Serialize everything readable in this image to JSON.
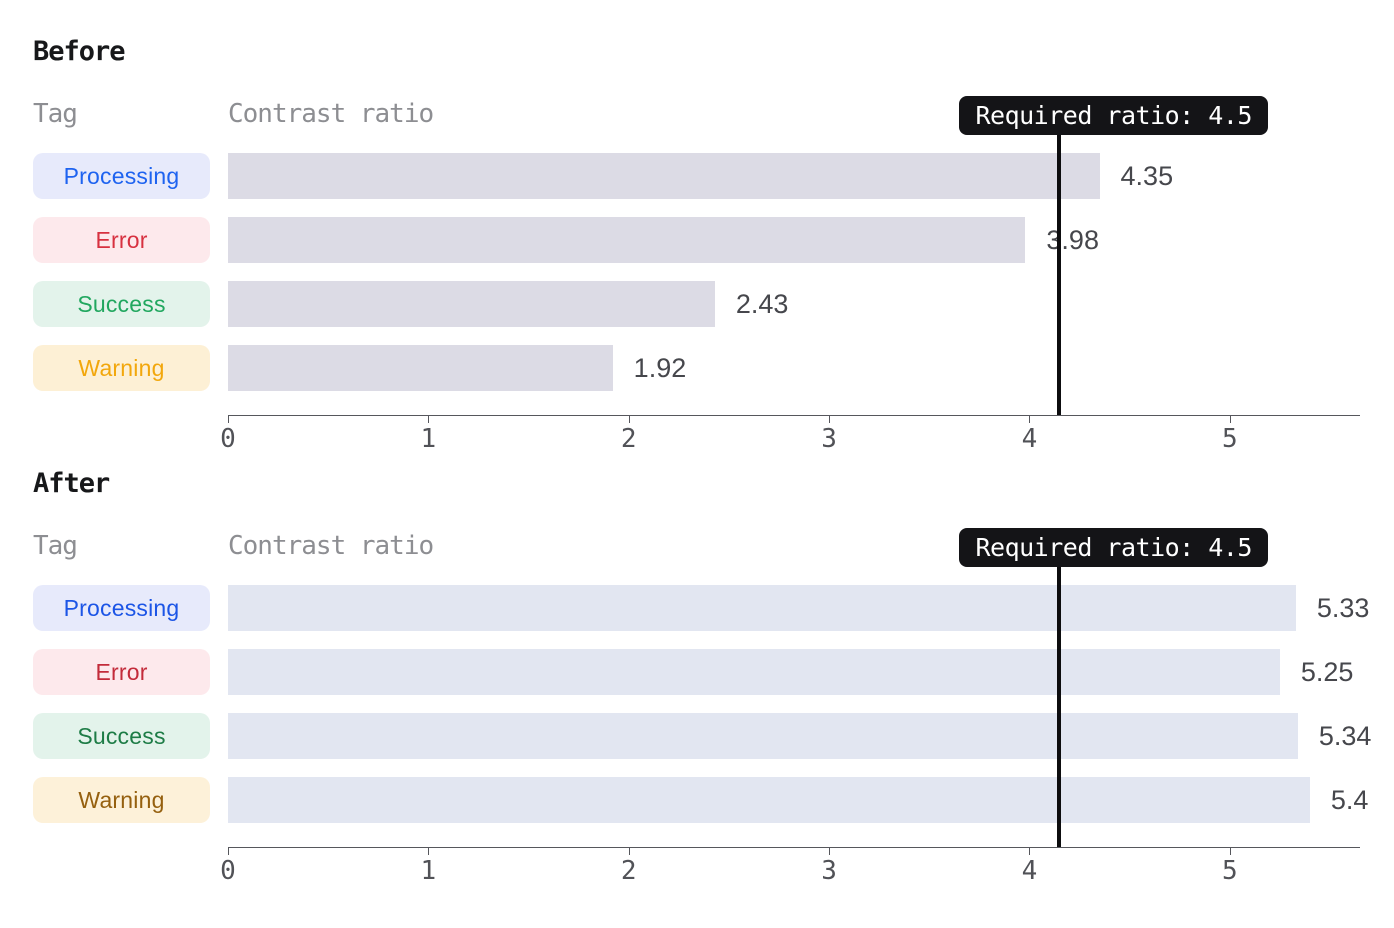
{
  "chart_data": [
    {
      "type": "bar",
      "orientation": "horizontal",
      "title": "Before",
      "tag_column_header": "Tag",
      "value_column_header": "Contrast ratio",
      "required_label": "Required ratio: 4.5",
      "required_ratio": 4.5,
      "required_line_axis_position": 4.15,
      "bar_color": "#dcdbe5",
      "xlim": [
        0,
        5.65
      ],
      "xticks": [
        0,
        1,
        2,
        3,
        4,
        5
      ],
      "grid": false,
      "rows": [
        {
          "tag": "Processing",
          "tag_color": "#1e63f0",
          "tag_bg": "#e7eafb",
          "value": 4.35,
          "value_label": "4.35"
        },
        {
          "tag": "Error",
          "tag_color": "#d73140",
          "tag_bg": "#fde9ec",
          "value": 3.98,
          "value_label": "3.98"
        },
        {
          "tag": "Success",
          "tag_color": "#21a75f",
          "tag_bg": "#e3f3eb",
          "value": 2.43,
          "value_label": "2.43"
        },
        {
          "tag": "Warning",
          "tag_color": "#f2a70c",
          "tag_bg": "#fdf0d5",
          "value": 1.92,
          "value_label": "1.92"
        }
      ]
    },
    {
      "type": "bar",
      "orientation": "horizontal",
      "title": "After",
      "tag_column_header": "Tag",
      "value_column_header": "Contrast ratio",
      "required_label": "Required ratio: 4.5",
      "required_ratio": 4.5,
      "required_line_axis_position": 4.15,
      "bar_color": "#e2e6f1",
      "xlim": [
        0,
        5.65
      ],
      "xticks": [
        0,
        1,
        2,
        3,
        4,
        5
      ],
      "grid": false,
      "rows": [
        {
          "tag": "Processing",
          "tag_color": "#1c55e6",
          "tag_bg": "#e7eafb",
          "value": 5.33,
          "value_label": "5.33"
        },
        {
          "tag": "Error",
          "tag_color": "#c32b3a",
          "tag_bg": "#fde9ec",
          "value": 5.25,
          "value_label": "5.25"
        },
        {
          "tag": "Success",
          "tag_color": "#1d7c46",
          "tag_bg": "#e3f3eb",
          "value": 5.34,
          "value_label": "5.34"
        },
        {
          "tag": "Warning",
          "tag_color": "#95600f",
          "tag_bg": "#fdf1d9",
          "value": 5.4,
          "value_label": "5.4"
        }
      ]
    }
  ]
}
